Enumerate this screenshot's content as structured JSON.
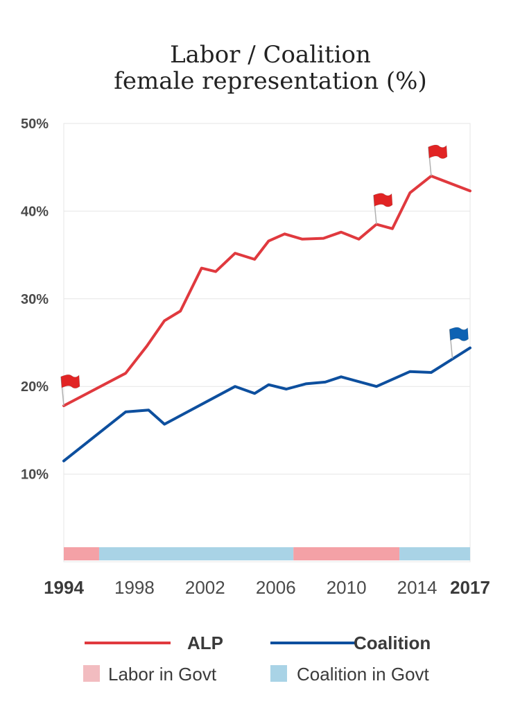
{
  "chart_data": {
    "type": "line",
    "title_lines": [
      "Labor / Coalition",
      "female representation (%)"
    ],
    "xlim": [
      1994,
      2017
    ],
    "ylim": [
      0,
      50
    ],
    "y_ticks": [
      {
        "value": 10,
        "label": "10%"
      },
      {
        "value": 20,
        "label": "20%"
      },
      {
        "value": 30,
        "label": "30%"
      },
      {
        "value": 40,
        "label": "40%"
      },
      {
        "value": 50,
        "label": "50%"
      }
    ],
    "x_ticks": [
      {
        "value": 1994,
        "label": "1994",
        "bold": true
      },
      {
        "value": 1998,
        "label": "1998",
        "bold": false
      },
      {
        "value": 2002,
        "label": "2002",
        "bold": false
      },
      {
        "value": 2006,
        "label": "2006",
        "bold": false
      },
      {
        "value": 2010,
        "label": "2010",
        "bold": false
      },
      {
        "value": 2014,
        "label": "2014",
        "bold": false
      },
      {
        "value": 2017,
        "label": "2017",
        "bold": true
      }
    ],
    "grid": true,
    "series": [
      {
        "name": "ALP",
        "color": "#e0393e",
        "points": [
          [
            1994,
            17.8
          ],
          [
            1997.5,
            21.5
          ],
          [
            1998.7,
            24.6
          ],
          [
            1999.7,
            27.5
          ],
          [
            2000.6,
            28.6
          ],
          [
            2001.8,
            33.5
          ],
          [
            2002.6,
            33.1
          ],
          [
            2003.7,
            35.2
          ],
          [
            2004.8,
            34.5
          ],
          [
            2005.6,
            36.6
          ],
          [
            2006.5,
            37.4
          ],
          [
            2007.5,
            36.8
          ],
          [
            2008.7,
            36.9
          ],
          [
            2009.7,
            37.6
          ],
          [
            2010.7,
            36.8
          ],
          [
            2011.7,
            38.5
          ],
          [
            2012.6,
            38.0
          ],
          [
            2013.6,
            42.1
          ],
          [
            2014.8,
            44.0
          ],
          [
            2017,
            42.3
          ]
        ]
      },
      {
        "name": "Coalition",
        "color": "#0d4f9e",
        "points": [
          [
            1994,
            11.5
          ],
          [
            1997.5,
            17.1
          ],
          [
            1998.8,
            17.3
          ],
          [
            1999.7,
            15.7
          ],
          [
            2003.7,
            20.0
          ],
          [
            2004.8,
            19.2
          ],
          [
            2005.6,
            20.2
          ],
          [
            2006.6,
            19.7
          ],
          [
            2007.7,
            20.3
          ],
          [
            2008.8,
            20.5
          ],
          [
            2009.7,
            21.1
          ],
          [
            2011.7,
            20.0
          ],
          [
            2013.6,
            21.7
          ],
          [
            2014.8,
            21.6
          ],
          [
            2017,
            24.4
          ]
        ]
      }
    ],
    "government_periods": [
      {
        "party": "Labor",
        "start": 1994,
        "end": 1996,
        "color": "#f4a1a6"
      },
      {
        "party": "Coalition",
        "start": 1996,
        "end": 2007,
        "color": "#a9d3e6"
      },
      {
        "party": "Labor",
        "start": 2007,
        "end": 2013,
        "color": "#f4a1a6"
      },
      {
        "party": "Coalition",
        "start": 2013,
        "end": 2017,
        "color": "#a9d3e6"
      }
    ],
    "flags": [
      {
        "x": 1994,
        "y": 17.8,
        "color": "#e12424"
      },
      {
        "x": 2011.7,
        "y": 38.5,
        "color": "#e12424"
      },
      {
        "x": 2014.8,
        "y": 44.0,
        "color": "#e12424"
      },
      {
        "x": 2016.0,
        "y": 23.2,
        "color": "#0d62b3"
      }
    ],
    "legend": {
      "placement": "bottom",
      "items": [
        {
          "label": "ALP",
          "kind": "line",
          "color": "#e0393e",
          "bold": true
        },
        {
          "label": "Coalition",
          "kind": "line",
          "color": "#0d4f9e",
          "bold": true
        },
        {
          "label": "Labor in Govt",
          "kind": "swatch",
          "color": "#f2bcc0",
          "bold": false
        },
        {
          "label": "Coalition in Govt",
          "kind": "swatch",
          "color": "#a9d3e6",
          "bold": false
        }
      ]
    }
  }
}
